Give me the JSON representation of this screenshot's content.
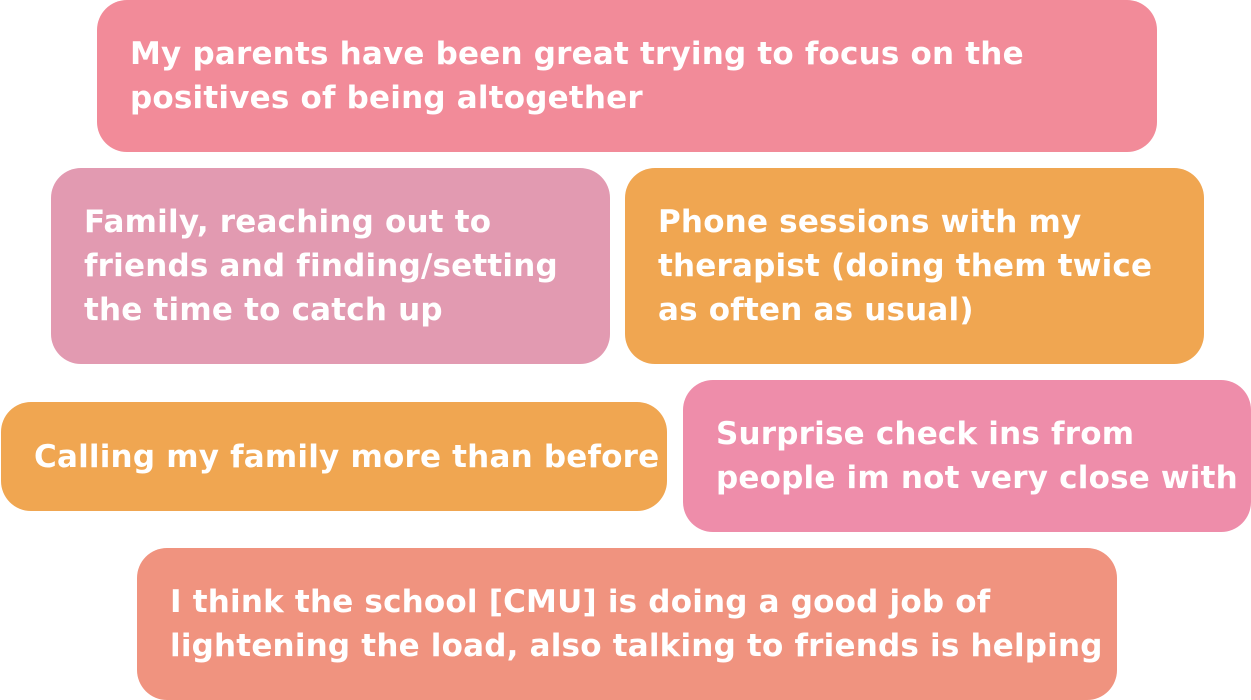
{
  "cards": [
    {
      "text": "My parents have been great trying to focus on the\npositives of being altogether",
      "color": "#F28B99"
    },
    {
      "text": "Family, reaching out to\nfriends and finding/setting\nthe time to catch up",
      "color": "#E29AB1"
    },
    {
      "text": "Phone sessions with my\ntherapist (doing them twice\nas often as usual)",
      "color": "#F0A651"
    },
    {
      "text": "Calling my family more than before",
      "color": "#F0A651"
    },
    {
      "text": "Surprise check ins from\npeople im not very close with",
      "color": "#EE8DAA"
    },
    {
      "text": "I think the school [CMU] is doing a good job of\nlightening the load, also talking to friends is helping",
      "color": "#F0937F"
    }
  ]
}
